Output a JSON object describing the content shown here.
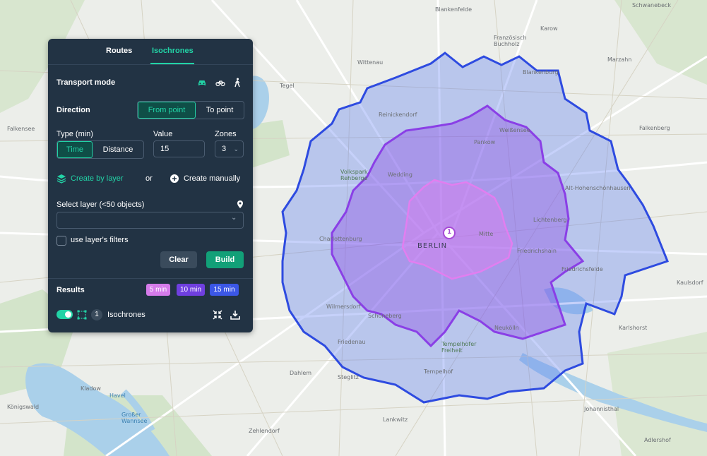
{
  "tabs": {
    "routes": "Routes",
    "isochrones": "Isochrones",
    "active": "Isochrones"
  },
  "transport": {
    "label": "Transport mode",
    "modes": [
      "car-icon",
      "bike-icon",
      "walk-icon"
    ],
    "active": "car-icon"
  },
  "direction": {
    "label": "Direction",
    "from": "From point",
    "to": "To point",
    "active": "From point"
  },
  "type": {
    "label": "Type (min)",
    "time": "Time",
    "distance": "Distance",
    "active": "Time"
  },
  "value": {
    "label": "Value",
    "current": "15"
  },
  "zones": {
    "label": "Zones",
    "current": "3"
  },
  "create": {
    "by_layer": "Create by layer",
    "or": "or",
    "manually": "Create manually"
  },
  "select_layer": {
    "label": "Select layer (<50 objects)",
    "value": ""
  },
  "filters": {
    "label": "use layer's filters",
    "checked": false
  },
  "buttons": {
    "clear": "Clear",
    "build": "Build"
  },
  "results": {
    "label": "Results",
    "chips": [
      {
        "label": "5 min",
        "color": "#d57bea"
      },
      {
        "label": "10 min",
        "color": "#6f3fe0"
      },
      {
        "label": "15 min",
        "color": "#3b57e6"
      }
    ],
    "item": {
      "index": "1",
      "name": "Isochrones",
      "visible": true
    }
  },
  "colors": {
    "accent": "#22d3a6",
    "panel": "#223344",
    "iso5": "#e27ef0",
    "iso10": "#8a3fe6",
    "iso15": "#3354e0"
  },
  "map": {
    "marker": "1",
    "labels": {
      "berlin": "BERLIN",
      "mitte": "Mitte",
      "wedding": "Wedding",
      "reinickendorf": "Reinickendorf",
      "tegel": "Tegel",
      "wittenau": "Wittenau",
      "blankenburg": "Blankenburg",
      "pankow": "Pankow",
      "weissensee": "Weißensee",
      "hohenschoenhausen": "Alt-Hohenschönhausen",
      "lichtenberg": "Lichtenberg",
      "friedrichshain": "Friedrichshain",
      "friedrichsfelde": "Friedrichsfelde",
      "karlshorst": "Karlshorst",
      "neukoelln": "Neukölln",
      "tempelhof": "Tempelhof",
      "schoeneberg": "Schöneberg",
      "wilmersdorf": "Wilmersdorf",
      "charlottenburg": "Charlottenburg",
      "friedenau": "Friedenau",
      "steglitz": "Steglitz",
      "dahlem": "Dahlem",
      "zehlendorf": "Zehlendorf",
      "lankwitz": "Lankwitz",
      "kladow": "Kladow",
      "falkenberg": "Falkenberg",
      "karow": "Karow",
      "blankenfelde": "Blankenfelde",
      "buchholz": "Französisch Buchholz",
      "spandau": "Falkensee",
      "schoeneiche": "Schwanebeck",
      "marzahn": "Marzahn",
      "kaulsdorf": "Kaulsdorf",
      "johannisthal": "Johannisthal",
      "adlershof": "Adlershof",
      "koenigswald": "Königswald",
      "tempelhofer_feld": "Tempelhofer Freiheit",
      "volkspark": "Volkspark Rehberge",
      "havel": "Havel",
      "grosser_wannsee": "Großer Wannsee"
    }
  }
}
